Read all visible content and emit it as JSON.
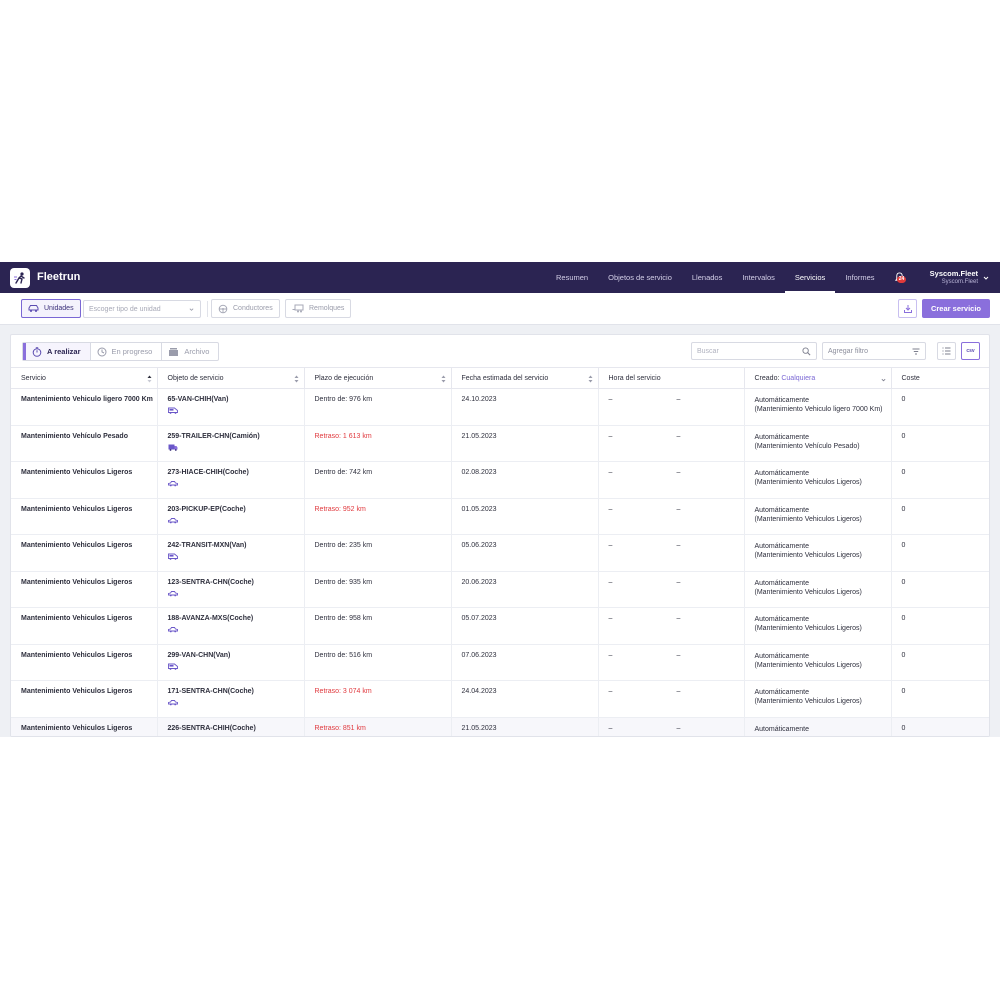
{
  "app": {
    "brand": "Fleetrun"
  },
  "nav": [
    {
      "label": "Resumen",
      "active": false
    },
    {
      "label": "Objetos de servicio",
      "active": false
    },
    {
      "label": "Llenados",
      "active": false
    },
    {
      "label": "Intervalos",
      "active": false
    },
    {
      "label": "Servicios",
      "active": true
    },
    {
      "label": "Informes",
      "active": false
    }
  ],
  "user": {
    "name": "Syscom.Fleet",
    "account": "Syscom.Fleet"
  },
  "notifications": {
    "count": "24"
  },
  "toolbar": {
    "units_label": "Unidades",
    "unit_type_placeholder": "Escoger tipo de unidad",
    "drivers_label": "Conductores",
    "trailers_label": "Remolques",
    "create_label": "Crear servicio"
  },
  "tabs": [
    {
      "label": "A realizar",
      "active": true
    },
    {
      "label": "En progreso",
      "active": false
    },
    {
      "label": "Archivo",
      "active": false
    }
  ],
  "search": {
    "placeholder": "Buscar"
  },
  "filter": {
    "placeholder": "Agregar filtro"
  },
  "csv_label": "csv",
  "table": {
    "headers": {
      "servicio": "Servicio",
      "objeto": "Objeto de servicio",
      "plazo": "Plazo de ejecución",
      "fecha": "Fecha estimada del servicio",
      "hora": "Hora del servicio",
      "creado": "Creado:",
      "creado_value": "Cualquiera",
      "coste": "Coste"
    },
    "rows": [
      {
        "servicio": "Mantenimiento Vehiculo ligero 7000 Km",
        "objeto": "65-VAN-CHIH(Van)",
        "vehicle": "van",
        "plazo": "Dentro de: 976 km",
        "delay": false,
        "fecha": "24.10.2023",
        "hora1": "–",
        "hora2": "–",
        "creado1": "Automáticamente",
        "creado2": "(Mantenimiento Vehiculo ligero 7000 Km)",
        "coste": "0"
      },
      {
        "servicio": "Mantenimiento Vehículo Pesado",
        "objeto": "259-TRAILER-CHN(Camión)",
        "vehicle": "truck",
        "plazo": "Retraso: 1 613 km",
        "delay": true,
        "fecha": "21.05.2023",
        "hora1": "–",
        "hora2": "–",
        "creado1": "Automáticamente",
        "creado2": "(Mantenimiento Vehículo Pesado)",
        "coste": "0"
      },
      {
        "servicio": "Mantenimiento Vehiculos Ligeros",
        "objeto": "273-HIACE-CHIH(Coche)",
        "vehicle": "car",
        "plazo": "Dentro de: 742 km",
        "delay": false,
        "fecha": "02.08.2023",
        "hora1": "–",
        "hora2": "–",
        "creado1": "Automáticamente",
        "creado2": "(Mantenimiento Vehiculos Ligeros)",
        "coste": "0"
      },
      {
        "servicio": "Mantenimiento Vehiculos Ligeros",
        "objeto": "203-PICKUP-EP(Coche)",
        "vehicle": "car",
        "plazo": "Retraso: 952 km",
        "delay": true,
        "fecha": "01.05.2023",
        "hora1": "–",
        "hora2": "–",
        "creado1": "Automáticamente",
        "creado2": "(Mantenimiento Vehiculos Ligeros)",
        "coste": "0"
      },
      {
        "servicio": "Mantenimiento Vehiculos Ligeros",
        "objeto": "242-TRANSIT-MXN(Van)",
        "vehicle": "van",
        "plazo": "Dentro de: 235 km",
        "delay": false,
        "fecha": "05.06.2023",
        "hora1": "–",
        "hora2": "–",
        "creado1": "Automáticamente",
        "creado2": "(Mantenimiento Vehiculos Ligeros)",
        "coste": "0"
      },
      {
        "servicio": "Mantenimiento Vehiculos Ligeros",
        "objeto": "123-SENTRA-CHN(Coche)",
        "vehicle": "car",
        "plazo": "Dentro de: 935 km",
        "delay": false,
        "fecha": "20.06.2023",
        "hora1": "–",
        "hora2": "–",
        "creado1": "Automáticamente",
        "creado2": "(Mantenimiento Vehiculos Ligeros)",
        "coste": "0"
      },
      {
        "servicio": "Mantenimiento Vehiculos Ligeros",
        "objeto": "188-AVANZA-MXS(Coche)",
        "vehicle": "car",
        "plazo": "Dentro de: 958 km",
        "delay": false,
        "fecha": "05.07.2023",
        "hora1": "–",
        "hora2": "–",
        "creado1": "Automáticamente",
        "creado2": "(Mantenimiento Vehiculos Ligeros)",
        "coste": "0"
      },
      {
        "servicio": "Mantenimiento Vehiculos Ligeros",
        "objeto": "299-VAN-CHN(Van)",
        "vehicle": "van",
        "plazo": "Dentro de: 516 km",
        "delay": false,
        "fecha": "07.06.2023",
        "hora1": "–",
        "hora2": "–",
        "creado1": "Automáticamente",
        "creado2": "(Mantenimiento Vehiculos Ligeros)",
        "coste": "0"
      },
      {
        "servicio": "Mantenimiento Vehiculos Ligeros",
        "objeto": "171-SENTRA-CHN(Coche)",
        "vehicle": "car",
        "plazo": "Retraso: 3 074 km",
        "delay": true,
        "fecha": "24.04.2023",
        "hora1": "–",
        "hora2": "–",
        "creado1": "Automáticamente",
        "creado2": "(Mantenimiento Vehiculos Ligeros)",
        "coste": "0"
      },
      {
        "servicio": "Mantenimiento Vehiculos Ligeros",
        "objeto": "226-SENTRA-CHIH(Coche)",
        "vehicle": "car",
        "plazo": "Retraso: 851 km",
        "delay": true,
        "fecha": "21.05.2023",
        "hora1": "–",
        "hora2": "–",
        "creado1": "Automáticamente",
        "creado2": "",
        "coste": "0"
      }
    ]
  },
  "colors": {
    "topbar": "#2b2452",
    "accent": "#8a6fdc",
    "delay": "#e0393e"
  }
}
